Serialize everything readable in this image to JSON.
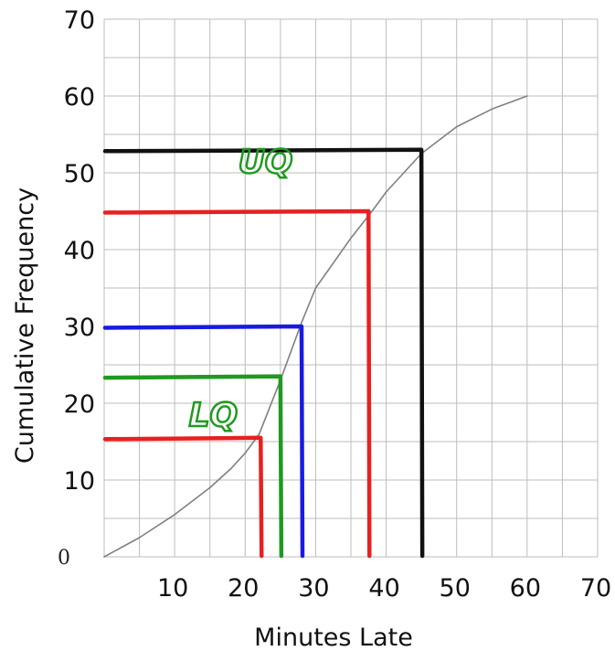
{
  "chart_data": {
    "type": "line",
    "title": "",
    "xlabel": "Minutes Late",
    "ylabel": "Cumulative Frequency",
    "xlim": [
      0,
      70
    ],
    "ylim": [
      0,
      70
    ],
    "grid": true,
    "x_ticks": [
      "",
      "10",
      "20",
      "30",
      "40",
      "50",
      "60",
      "70"
    ],
    "y_ticks": [
      "0",
      "10",
      "20",
      "30",
      "40",
      "50",
      "60",
      "70"
    ],
    "series": [
      {
        "x": [
          0,
          5,
          10,
          15,
          18,
          20,
          22,
          25,
          28,
          30,
          35,
          38,
          40,
          45,
          50,
          55,
          60
        ],
        "y": [
          0,
          2.5,
          5.5,
          9,
          11.5,
          13.5,
          16,
          23,
          30.5,
          35,
          41.5,
          45,
          47.5,
          52.5,
          56,
          58.3,
          60
        ],
        "color": "#808080"
      }
    ],
    "reference_lines": [
      {
        "x": 22.2,
        "y": 15.5,
        "color": "#e82020"
      },
      {
        "x": 25,
        "y": 23.5,
        "color": "#1f9a1f"
      },
      {
        "x": 28,
        "y": 30,
        "color": "#1a1ae0"
      },
      {
        "x": 37.5,
        "y": 45,
        "color": "#e82020"
      },
      {
        "x": 45,
        "y": 53,
        "color": "#111111"
      }
    ],
    "annotations": [
      {
        "text": "UQ",
        "x": 19,
        "y": 50,
        "color": "#1f9a1f"
      },
      {
        "text": "LQ",
        "x": 12,
        "y": 17,
        "color": "#1f9a1f"
      }
    ]
  }
}
